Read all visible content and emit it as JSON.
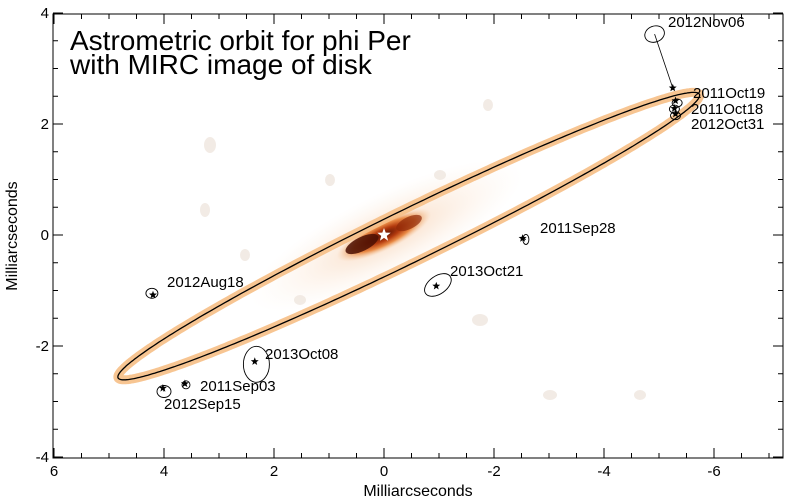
{
  "chart_data": {
    "type": "scatter",
    "title_lines": [
      "Astrometric orbit for phi Per",
      "with MIRC image of disk"
    ],
    "xlabel": "Milliarcseconds",
    "ylabel": "Milliarcseconds",
    "xlim": [
      6,
      -7.2
    ],
    "ylim": [
      -4.1,
      4.15
    ],
    "x_ticks": [
      6,
      4,
      2,
      0,
      -2,
      -4,
      -6
    ],
    "y_ticks": [
      4,
      2,
      0,
      -2,
      -4
    ],
    "x_tick_labels": [
      "6",
      "4",
      "2",
      "0",
      "-2",
      "-4",
      "-6"
    ],
    "y_tick_labels": [
      "4",
      "2",
      "0",
      "-2",
      "-4"
    ],
    "orbit": {
      "center": [
        -0.45,
        -0.02
      ],
      "semi_major": 5.87,
      "semi_minor": 0.47,
      "angle_deg": 25.8,
      "line_color": "#000000",
      "band_color": "#f6bf86"
    },
    "primary_star": {
      "x": 0,
      "y": 0,
      "color": "#ffffff"
    },
    "disk_colors": [
      "#f7cfa6",
      "#e98a45",
      "#b33a0e",
      "#5c1304"
    ],
    "points": [
      {
        "label": "2012Nov06",
        "x": -4.92,
        "y": 3.62,
        "model_x": -5.25,
        "model_y": 2.65
      },
      {
        "label": "2011Oct19",
        "x": -5.33,
        "y": 2.38,
        "model_x": -5.3,
        "model_y": 2.42
      },
      {
        "label": "2011Oct18",
        "x": -5.28,
        "y": 2.27,
        "model_x": -5.28,
        "model_y": 2.28
      },
      {
        "label": "2012Oct31",
        "x": -5.3,
        "y": 2.15,
        "model_x": -5.3,
        "model_y": 2.18
      },
      {
        "label": "2011Sep28",
        "x": -2.58,
        "y": -0.08,
        "model_x": -2.52,
        "model_y": -0.06
      },
      {
        "label": "2013Oct21",
        "x": -0.98,
        "y": -0.9,
        "model_x": -0.95,
        "model_y": -0.92
      },
      {
        "label": "2012Aug18",
        "x": 4.22,
        "y": -1.05,
        "model_x": 4.2,
        "model_y": -1.08
      },
      {
        "label": "2013Oct08",
        "x": 2.32,
        "y": -2.33,
        "model_x": 2.35,
        "model_y": -2.28
      },
      {
        "label": "2011Sep03",
        "x": 3.6,
        "y": -2.7,
        "model_x": 3.62,
        "model_y": -2.68
      },
      {
        "label": "2012Sep15",
        "x": 4.0,
        "y": -2.82,
        "model_x": 4.02,
        "model_y": -2.76
      }
    ]
  }
}
